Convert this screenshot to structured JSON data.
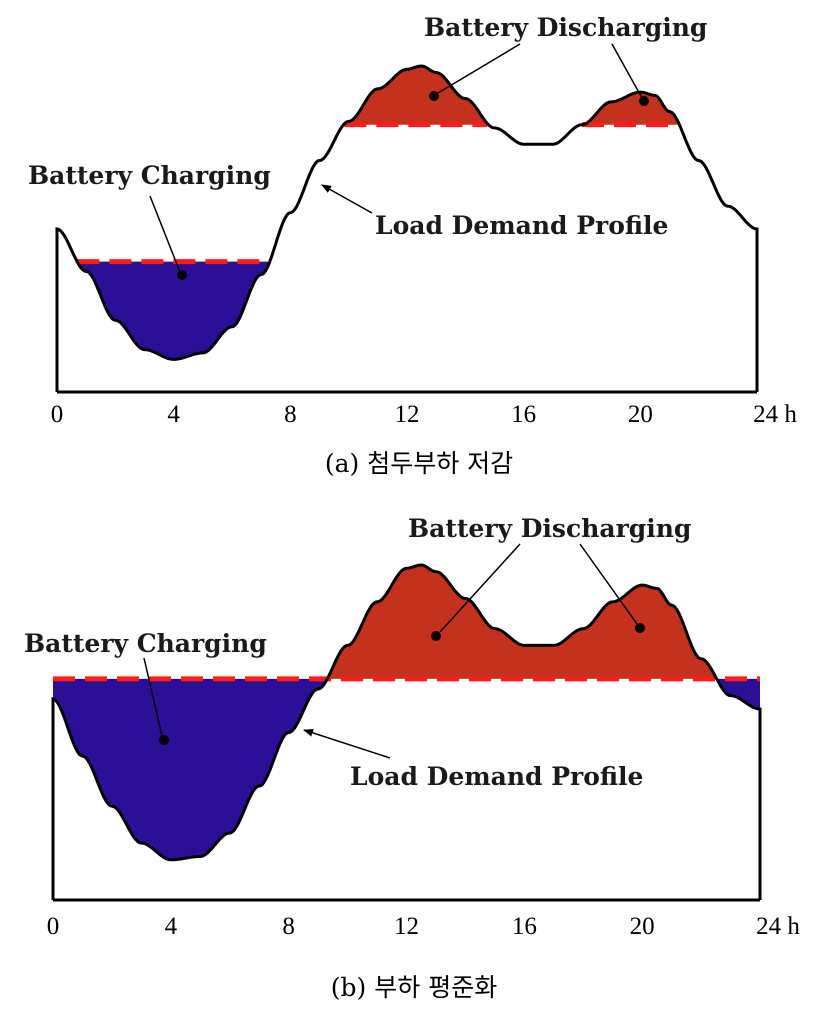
{
  "chart_data": [
    {
      "type": "area",
      "panel": "a",
      "caption": "(a) 첨두부하 저감",
      "x_unit": "h",
      "xticks": [
        0,
        4,
        8,
        12,
        16,
        20,
        24
      ],
      "xtick_labels": [
        "0",
        "4",
        "8",
        "12",
        "16",
        "20",
        "24 h"
      ],
      "xlim": [
        0,
        24
      ],
      "load_profile": {
        "x": [
          0,
          1,
          2,
          3,
          4,
          5,
          6,
          7,
          8,
          9,
          10,
          11,
          12,
          12.5,
          13,
          14,
          15,
          16,
          17,
          18,
          19,
          20,
          20.5,
          21,
          22,
          23,
          24
        ],
        "y": [
          0.5,
          0.37,
          0.22,
          0.13,
          0.1,
          0.12,
          0.2,
          0.36,
          0.55,
          0.71,
          0.83,
          0.93,
          0.99,
          1.0,
          0.98,
          0.9,
          0.81,
          0.76,
          0.76,
          0.82,
          0.89,
          0.92,
          0.91,
          0.86,
          0.71,
          0.57,
          0.5
        ]
      },
      "charging_threshold": 0.4,
      "discharging_threshold": 0.82,
      "annotations": [
        "Battery Charging",
        "Battery Discharging",
        "Load Demand Profile"
      ],
      "colors": {
        "charging": "#2b0f96",
        "discharging": "#c4321e",
        "threshold": "#ff1a1a",
        "profile": "#000000"
      }
    },
    {
      "type": "area",
      "panel": "b",
      "caption": "(b) 부하 평준화",
      "x_unit": "h",
      "xticks": [
        0,
        4,
        8,
        12,
        16,
        20,
        24
      ],
      "xtick_labels": [
        "0",
        "4",
        "8",
        "12",
        "16",
        "20",
        "24 h"
      ],
      "xlim": [
        0,
        24
      ],
      "load_profile": {
        "x": [
          0,
          1,
          2,
          3,
          4,
          5,
          6,
          7,
          8,
          9,
          10,
          11,
          12,
          12.5,
          13,
          14,
          15,
          16,
          17,
          18,
          19,
          20,
          20.5,
          21,
          22,
          23,
          24
        ],
        "y": [
          0.6,
          0.43,
          0.28,
          0.17,
          0.12,
          0.13,
          0.2,
          0.34,
          0.5,
          0.63,
          0.76,
          0.89,
          0.99,
          1.0,
          0.98,
          0.9,
          0.81,
          0.76,
          0.76,
          0.81,
          0.89,
          0.94,
          0.93,
          0.88,
          0.72,
          0.61,
          0.57
        ]
      },
      "level_threshold": 0.66,
      "annotations": [
        "Battery Charging",
        "Battery Discharging",
        "Load Demand Profile"
      ],
      "colors": {
        "charging": "#2b0f96",
        "discharging": "#c4321e",
        "threshold": "#ff1a1a",
        "profile": "#000000"
      }
    }
  ]
}
